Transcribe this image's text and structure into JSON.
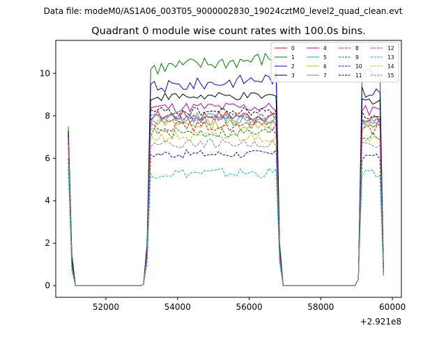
{
  "figure": {
    "suptitle": "Data file: modeM0/AS1A06_003T05_9000002830_19024cztM0_level2_quad_clean.evt"
  },
  "chart_data": {
    "type": "line",
    "title": "Quadrant 0 module wise count rates with 100.0s bins.",
    "xlabel": "",
    "ylabel": "",
    "offset_text": "+2.921e8",
    "xlim": [
      50600,
      60250
    ],
    "ylim": [
      -0.55,
      11.55
    ],
    "xticks": [
      52000,
      54000,
      56000,
      58000,
      60000
    ],
    "xtick_labels": [
      "52000",
      "54000",
      "56000",
      "58000",
      "60000"
    ],
    "yticks": [
      0,
      2,
      4,
      6,
      8,
      10
    ],
    "ytick_labels": [
      "0",
      "2",
      "4",
      "6",
      "8",
      "10"
    ],
    "grid": false,
    "legend_location": "top-right",
    "legend_columns": 4,
    "gti_segments": [
      {
        "start": 50950,
        "end": 51150
      },
      {
        "start": 53150,
        "end": 56850
      },
      {
        "start": 59050,
        "end": 59750
      }
    ],
    "gap_value": 0.0,
    "series": [
      {
        "name": "0",
        "color": "#ff0000",
        "dash": "solid",
        "level": 8.0,
        "edge": 7.0,
        "end": 1.0,
        "amp": 0.25
      },
      {
        "name": "1",
        "color": "#008000",
        "dash": "solid",
        "level": 10.2,
        "edge": 7.5,
        "end": 1.5,
        "amp": 0.35
      },
      {
        "name": "2",
        "color": "#0000ff",
        "dash": "solid",
        "level": 9.3,
        "edge": 7.2,
        "end": 1.3,
        "amp": 0.3
      },
      {
        "name": "3",
        "color": "#000000",
        "dash": "solid",
        "level": 8.9,
        "edge": 7.3,
        "end": 1.2,
        "amp": 0.2
      },
      {
        "name": "4",
        "color": "#bf00bf",
        "dash": "solid",
        "level": 8.4,
        "edge": 7.0,
        "end": 1.1,
        "amp": 0.25
      },
      {
        "name": "5",
        "color": "#00bfbf",
        "dash": "solid",
        "level": 7.9,
        "edge": 6.8,
        "end": 1.0,
        "amp": 0.25
      },
      {
        "name": "6",
        "color": "#bfbf00",
        "dash": "solid",
        "level": 7.6,
        "edge": 6.8,
        "end": 0.9,
        "amp": 0.25
      },
      {
        "name": "7",
        "color": "#808080",
        "dash": "solid",
        "level": 7.8,
        "edge": 6.9,
        "end": 1.0,
        "amp": 0.25
      },
      {
        "name": "8",
        "color": "#ff0000",
        "dash": "dashed",
        "level": 7.5,
        "edge": 6.9,
        "end": 1.0,
        "amp": 0.25
      },
      {
        "name": "9",
        "color": "#008000",
        "dash": "dashed",
        "level": 7.2,
        "edge": 6.6,
        "end": 0.9,
        "amp": 0.25
      },
      {
        "name": "10",
        "color": "#0000ff",
        "dash": "dashed",
        "level": 6.2,
        "edge": 6.0,
        "end": 0.8,
        "amp": 0.2
      },
      {
        "name": "11",
        "color": "#000000",
        "dash": "dashed",
        "level": 8.2,
        "edge": 7.1,
        "end": 1.1,
        "amp": 0.2
      },
      {
        "name": "12",
        "color": "#bf00bf",
        "dash": "dashed",
        "level": 7.9,
        "edge": 6.9,
        "end": 1.0,
        "amp": 0.2
      },
      {
        "name": "13",
        "color": "#00bfbf",
        "dash": "dashed",
        "level": 5.3,
        "edge": 5.5,
        "end": 0.7,
        "amp": 0.25
      },
      {
        "name": "14",
        "color": "#bfbf00",
        "dash": "dashed",
        "level": 7.0,
        "edge": 6.6,
        "end": 0.9,
        "amp": 0.25
      },
      {
        "name": "15",
        "color": "#808080",
        "dash": "dashed",
        "level": 6.7,
        "edge": 6.4,
        "end": 0.9,
        "amp": 0.2
      }
    ]
  }
}
